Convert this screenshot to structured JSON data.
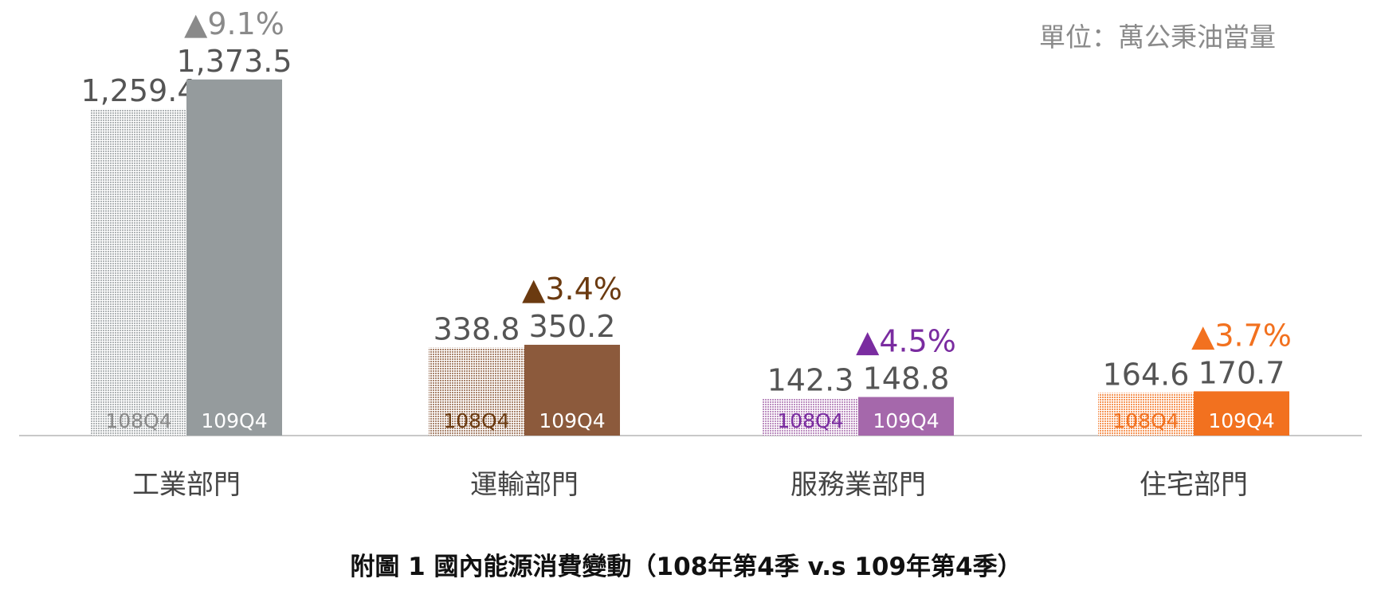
{
  "chart_data": {
    "type": "bar",
    "title": "附圖 1  國內能源消費變動（108年第4季 v.s 109年第4季）",
    "unit": "單位：萬公秉油當量",
    "categories": [
      "工業部門",
      "運輸部門",
      "服務業部門",
      "住宅部門"
    ],
    "series": [
      {
        "name": "108Q4",
        "values": [
          1259.4,
          338.8,
          142.3,
          164.6
        ],
        "value_labels": [
          "1,259.4",
          "338.8",
          "142.3",
          "164.6"
        ]
      },
      {
        "name": "109Q4",
        "values": [
          1373.5,
          350.2,
          148.8,
          170.7
        ],
        "value_labels": [
          "1,373.5",
          "350.2",
          "148.8",
          "170.7"
        ]
      }
    ],
    "colors": [
      "#959b9d",
      "#8c5a3c",
      "#a568ab",
      "#f2711f"
    ],
    "annotations": [
      "▲9.1%",
      "▲3.4%",
      "▲4.5%",
      "▲3.7%"
    ],
    "annotation_colors": [
      "#8a8a8a",
      "#6b3a10",
      "#7a2ca0",
      "#f2711f"
    ],
    "ylim": [
      0,
      1680
    ]
  }
}
